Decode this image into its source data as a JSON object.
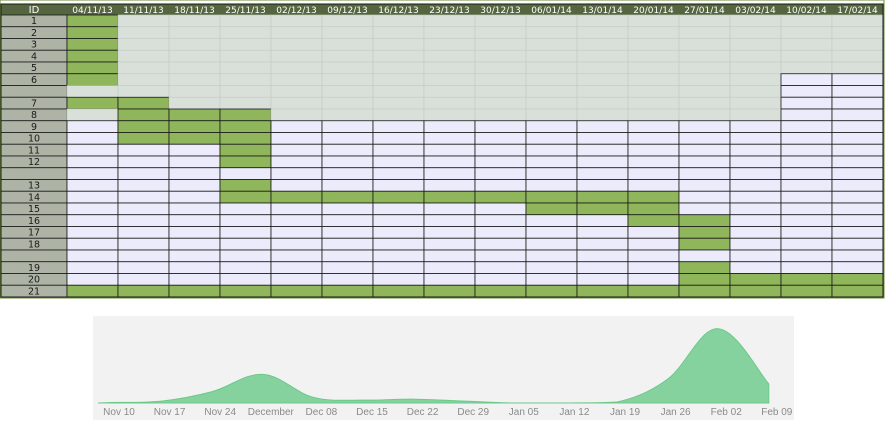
{
  "gantt": {
    "id_header": "ID",
    "columns": [
      "04/11/13",
      "11/11/13",
      "18/11/13",
      "25/11/13",
      "02/12/13",
      "09/12/13",
      "16/12/13",
      "23/12/13",
      "30/12/13",
      "06/01/14",
      "13/01/14",
      "20/01/14",
      "27/01/14",
      "03/02/14",
      "10/02/14",
      "17/02/14"
    ],
    "rows": [
      {
        "id": "1",
        "start": 0,
        "end": 0
      },
      {
        "id": "2",
        "start": 0,
        "end": 0
      },
      {
        "id": "3",
        "start": 0,
        "end": 0
      },
      {
        "id": "4",
        "start": 0,
        "end": 0
      },
      {
        "id": "5",
        "start": 0,
        "end": 0
      },
      {
        "id": "6",
        "start": 0,
        "end": 0
      },
      {
        "id": "",
        "start": null,
        "end": null
      },
      {
        "id": "7",
        "start": 0,
        "end": 1
      },
      {
        "id": "8",
        "start": 1,
        "end": 3
      },
      {
        "id": "9",
        "start": 1,
        "end": 3
      },
      {
        "id": "10",
        "start": 1,
        "end": 3
      },
      {
        "id": "11",
        "start": 3,
        "end": 3
      },
      {
        "id": "12",
        "start": 3,
        "end": 3
      },
      {
        "id": "",
        "start": null,
        "end": null
      },
      {
        "id": "13",
        "start": 3,
        "end": 3
      },
      {
        "id": "14",
        "start": 3,
        "end": 11
      },
      {
        "id": "15",
        "start": 9,
        "end": 11
      },
      {
        "id": "16",
        "start": 11,
        "end": 12
      },
      {
        "id": "17",
        "start": 12,
        "end": 12
      },
      {
        "id": "18",
        "start": 12,
        "end": 12
      },
      {
        "id": "",
        "start": null,
        "end": null
      },
      {
        "id": "19",
        "start": 12,
        "end": 12
      },
      {
        "id": "20",
        "start": 12,
        "end": 15
      },
      {
        "id": "21",
        "start": 0,
        "end": 15
      }
    ],
    "colors": {
      "header_bg": "#55653f",
      "header_text": "#ffffff",
      "id_cell_bg": "#adb4a6",
      "past_cell_bg": "#d9dfd9",
      "future_cell_bg": "#ecebfb",
      "bar": "#8fb65a",
      "border": "#1a1a1a"
    }
  },
  "chart_data": {
    "type": "area",
    "x_labels": [
      "Nov 10",
      "Nov 17",
      "Nov 24",
      "December",
      "Dec 08",
      "Dec 15",
      "Dec 22",
      "Dec 29",
      "Jan 05",
      "Jan 12",
      "Jan 19",
      "Jan 26",
      "Feb 02",
      "Feb 09"
    ],
    "x": [
      "Nov 07",
      "Nov 10",
      "Nov 17",
      "Nov 24",
      "Dec 01",
      "Dec 08",
      "Dec 15",
      "Dec 22",
      "Dec 29",
      "Jan 05",
      "Jan 12",
      "Jan 19",
      "Jan 26",
      "Feb 02",
      "Feb 09"
    ],
    "values": [
      0,
      0.5,
      2,
      12,
      30,
      6,
      3,
      4,
      2,
      0,
      0,
      1,
      25,
      78,
      20
    ],
    "ylim": [
      0,
      85
    ],
    "grid": false,
    "colors": {
      "fill": "#85d29f",
      "stroke": "#6cc98a",
      "panel_bg": "#f2f2f2",
      "tick_text": "#8a8a8a"
    }
  }
}
